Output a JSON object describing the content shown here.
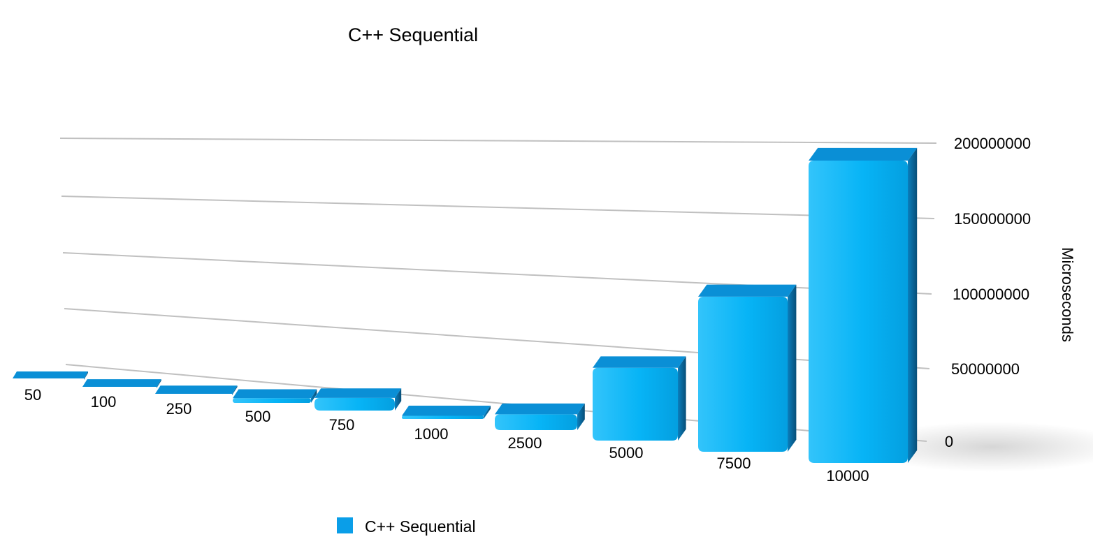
{
  "chart_data": {
    "type": "bar",
    "title": "C++ Sequential",
    "xlabel": "",
    "ylabel": "Microseconds",
    "categories": [
      "50",
      "100",
      "250",
      "500",
      "750",
      "1000",
      "2500",
      "5000",
      "7500",
      "10000"
    ],
    "series": [
      {
        "name": "C++ Sequential",
        "values": [
          6000,
          40000,
          500000,
          3000000,
          8000000,
          2000000,
          10000000,
          46000000,
          98000000,
          191000000
        ]
      }
    ],
    "yticks": [
      "0",
      "50000000",
      "100000000",
      "150000000",
      "200000000"
    ],
    "ylim": [
      0,
      200000000
    ],
    "grid": true,
    "y_axis_position": "right",
    "legend": "bottom-left",
    "perspective": "3d",
    "colors": {
      "bar_front": "#0ab5f7",
      "bar_top": "#0a8fd6",
      "bar_side": "#0a6a9e",
      "legend_swatch": "#0a9ee8",
      "grid": "#c0c0c0"
    }
  }
}
